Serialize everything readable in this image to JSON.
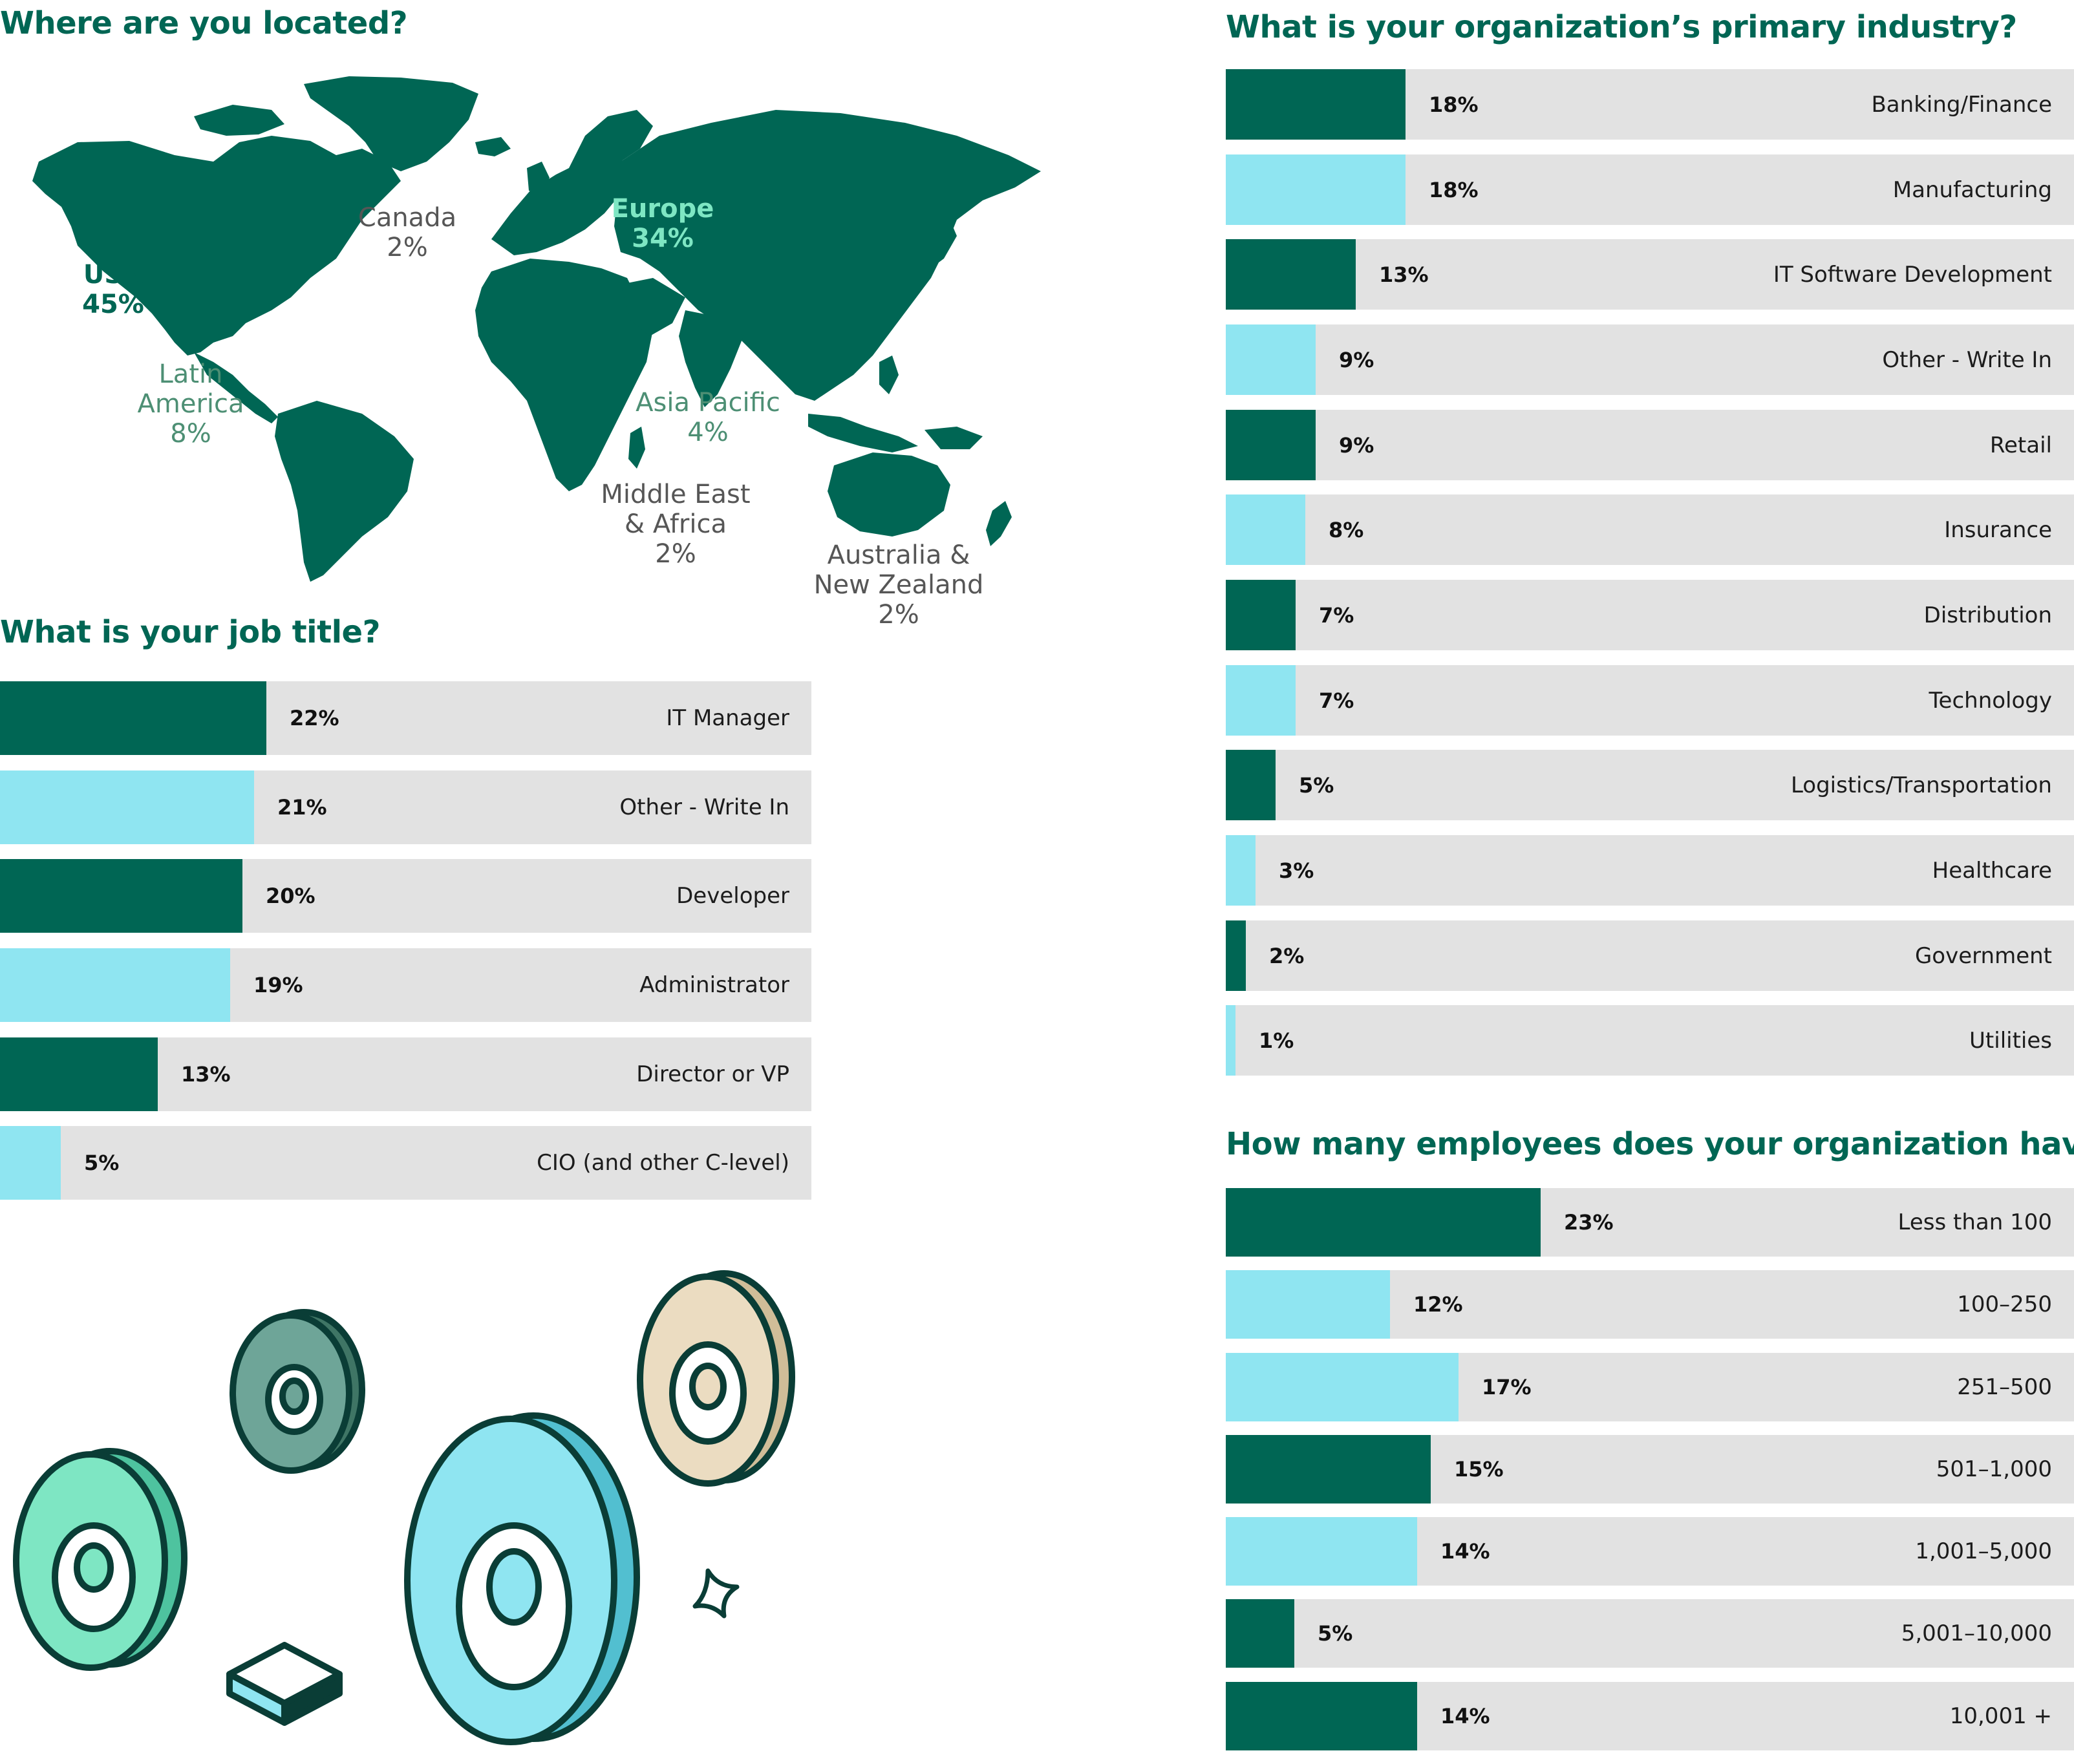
{
  "colors": {
    "dark_green": "#006654",
    "light_cyan": "#8fe5f1",
    "track_grey": "#e2e2e2",
    "mint": "#7ee6c3",
    "tan": "#ebdcc1",
    "sage": "#6ea598"
  },
  "location": {
    "title": "Where are you located?",
    "regions": [
      {
        "id": "usa",
        "name": "USA",
        "pct": "45%"
      },
      {
        "id": "canada",
        "name": "Canada",
        "pct": "2%"
      },
      {
        "id": "latin-america",
        "name": "Latin America",
        "pct": "8%"
      },
      {
        "id": "europe",
        "name": "Europe",
        "pct": "34%"
      },
      {
        "id": "asia-pacific",
        "name": "Asia Pacific",
        "pct": "4%"
      },
      {
        "id": "middle-east-africa",
        "name": "Middle East & Africa",
        "pct": "2%"
      },
      {
        "id": "australia-nz",
        "name": "Australia & New Zealand",
        "pct": "2%"
      }
    ]
  },
  "chart_data": [
    {
      "type": "bar",
      "title": "What is your job title?",
      "categories": [
        "IT Manager",
        "Other - Write In",
        "Developer",
        "Administrator",
        "Director or VP",
        "CIO (and other C-level)"
      ],
      "values": [
        22,
        21,
        20,
        19,
        13,
        5
      ],
      "labels": [
        "22%",
        "21%",
        "20%",
        "19%",
        "13%",
        "5%"
      ],
      "colors": [
        "#006654",
        "#8fe5f1",
        "#006654",
        "#8fe5f1",
        "#006654",
        "#8fe5f1"
      ],
      "xlim": [
        0,
        67
      ]
    },
    {
      "type": "bar",
      "title": "What is your organization’s primary industry?",
      "categories": [
        "Banking/Finance",
        "Manufacturing",
        "IT Software Development",
        "Other - Write In",
        "Retail",
        "Insurance",
        "Distribution",
        "Technology",
        "Logistics/Transportation",
        "Healthcare",
        "Government",
        "Utilities"
      ],
      "values": [
        18,
        18,
        13,
        9,
        9,
        8,
        7,
        7,
        5,
        3,
        2,
        1
      ],
      "labels": [
        "18%",
        "18%",
        "13%",
        "9%",
        "9%",
        "8%",
        "7%",
        "7%",
        "5%",
        "3%",
        "2%",
        "1%"
      ],
      "colors": [
        "#006654",
        "#8fe5f1",
        "#006654",
        "#8fe5f1",
        "#006654",
        "#8fe5f1",
        "#006654",
        "#8fe5f1",
        "#006654",
        "#8fe5f1",
        "#006654",
        "#8fe5f1"
      ],
      "xlim": [
        0,
        85
      ]
    },
    {
      "type": "bar",
      "title": "How many employees does your organization have?",
      "categories": [
        "Less than 100",
        "100–250",
        "251–500",
        "501–1,000",
        "1,001–5,000",
        "5,001–10,000",
        "10,001 +"
      ],
      "values": [
        23,
        12,
        17,
        15,
        14,
        5,
        14
      ],
      "labels": [
        "23%",
        "12%",
        "17%",
        "15%",
        "14%",
        "5%",
        "14%"
      ],
      "colors": [
        "#006654",
        "#8fe5f1",
        "#8fe5f1",
        "#006654",
        "#8fe5f1",
        "#006654",
        "#006654"
      ],
      "xlim": [
        0,
        62
      ]
    }
  ]
}
